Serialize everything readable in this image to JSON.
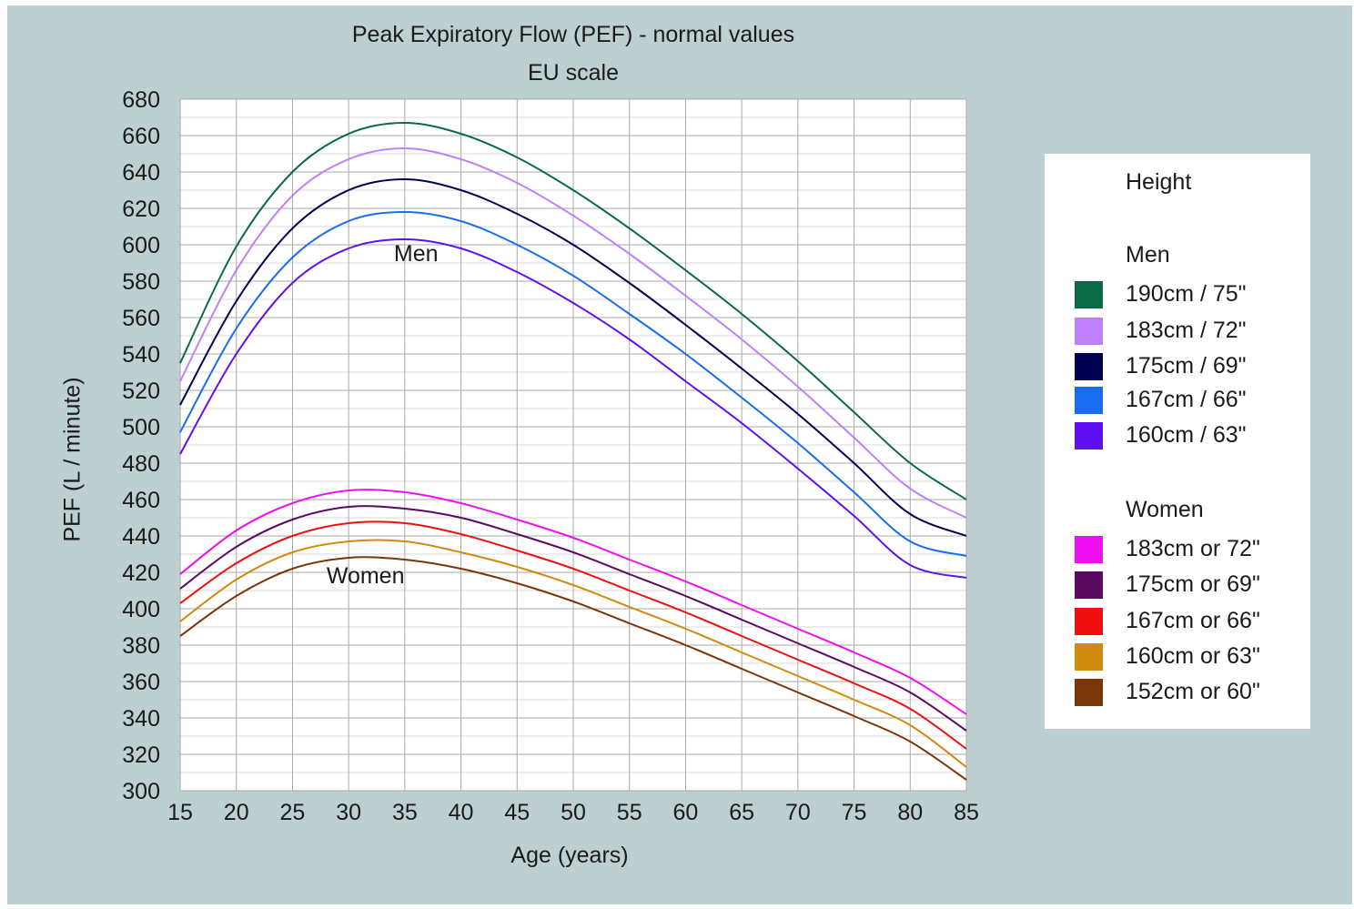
{
  "chart_data": {
    "type": "line",
    "title": "Peak Expiratory Flow (PEF) - normal values",
    "subtitle": "EU scale",
    "xlabel": "Age (years)",
    "ylabel": "PEF (L / minute)",
    "xlim": [
      15,
      85
    ],
    "ylim": [
      300,
      680
    ],
    "x_ticks": [
      15,
      20,
      25,
      30,
      35,
      40,
      45,
      50,
      55,
      60,
      65,
      70,
      75,
      80,
      85
    ],
    "y_ticks": [
      300,
      320,
      340,
      360,
      380,
      400,
      420,
      440,
      460,
      480,
      500,
      520,
      540,
      560,
      580,
      600,
      620,
      640,
      660,
      680
    ],
    "grid": true,
    "legend_placement": "right",
    "x": [
      15,
      20,
      25,
      30,
      35,
      40,
      45,
      50,
      55,
      60,
      65,
      70,
      75,
      80,
      85
    ],
    "series": [
      {
        "name": "190cm / 75\"",
        "group": "Men",
        "color": "#0b6a46",
        "values": [
          535,
          599,
          640,
          661,
          667,
          661,
          648,
          630,
          609,
          586,
          562,
          536,
          508,
          480,
          460
        ]
      },
      {
        "name": "183cm / 72\"",
        "group": "Men",
        "color": "#bf80ff",
        "values": [
          525,
          586,
          627,
          647,
          653,
          647,
          634,
          616,
          595,
          572,
          548,
          522,
          494,
          466,
          450
        ]
      },
      {
        "name": "175cm / 69\"",
        "group": "Men",
        "color": "#000050",
        "values": [
          512,
          569,
          609,
          630,
          636,
          630,
          617,
          600,
          579,
          556,
          532,
          507,
          480,
          452,
          440
        ]
      },
      {
        "name": "167cm / 66\"",
        "group": "Men",
        "color": "#1a6cf0",
        "values": [
          497,
          554,
          593,
          613,
          618,
          613,
          600,
          583,
          562,
          540,
          516,
          491,
          464,
          437,
          429
        ]
      },
      {
        "name": "160cm / 63\"",
        "group": "Men",
        "color": "#6010f0",
        "values": [
          485,
          540,
          579,
          598,
          603,
          598,
          585,
          568,
          548,
          525,
          502,
          477,
          451,
          424,
          417
        ]
      },
      {
        "name": "183cm or 72\"",
        "group": "Women",
        "color": "#ee10f0",
        "values": [
          419,
          443,
          458,
          465,
          464,
          458,
          449,
          439,
          427,
          415,
          402,
          389,
          376,
          362,
          342
        ]
      },
      {
        "name": "175cm or 69\"",
        "group": "Women",
        "color": "#5a0a60",
        "values": [
          411,
          434,
          449,
          456,
          455,
          450,
          441,
          431,
          419,
          407,
          394,
          381,
          368,
          354,
          333
        ]
      },
      {
        "name": "167cm or 66\"",
        "group": "Women",
        "color": "#ee1010",
        "values": [
          403,
          425,
          440,
          447,
          447,
          441,
          432,
          422,
          410,
          398,
          385,
          372,
          359,
          345,
          323
        ]
      },
      {
        "name": "160cm or 63\"",
        "group": "Women",
        "color": "#d08a10",
        "values": [
          393,
          416,
          431,
          437,
          437,
          431,
          423,
          413,
          401,
          389,
          376,
          363,
          350,
          336,
          313
        ]
      },
      {
        "name": "152cm or 60\"",
        "group": "Women",
        "color": "#7a3608",
        "values": [
          385,
          407,
          422,
          428,
          427,
          422,
          414,
          404,
          392,
          380,
          367,
          354,
          341,
          327,
          306
        ]
      }
    ],
    "annotations": [
      {
        "text": "Men",
        "x": 36,
        "y": 591
      },
      {
        "text": "Women",
        "x": 31.5,
        "y": 414
      }
    ]
  },
  "legend": {
    "title": "Height",
    "groups": [
      {
        "label": "Men",
        "items": [
          {
            "label": "190cm / 75\"",
            "color": "#0b6a46"
          },
          {
            "label": "183cm / 72\"",
            "color": "#bf80ff"
          },
          {
            "label": "175cm / 69\"",
            "color": "#000050"
          },
          {
            "label": "167cm / 66\"",
            "color": "#1a6cf0"
          },
          {
            "label": "160cm / 63\"",
            "color": "#6010f0"
          }
        ]
      },
      {
        "label": "Women",
        "items": [
          {
            "label": "183cm or 72\"",
            "color": "#ee10f0"
          },
          {
            "label": "175cm or 69\"",
            "color": "#5a0a60"
          },
          {
            "label": "167cm or 66\"",
            "color": "#ee1010"
          },
          {
            "label": "160cm or 63\"",
            "color": "#d08a10"
          },
          {
            "label": "152cm or 60\"",
            "color": "#7a3608"
          }
        ]
      }
    ]
  }
}
